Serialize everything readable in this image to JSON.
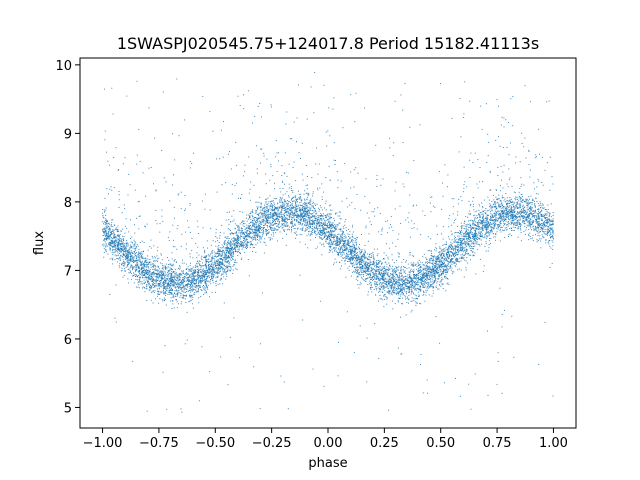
{
  "chart_data": {
    "type": "scatter",
    "title": "1SWASPJ020545.75+124017.8 Period 15182.41113s",
    "xlabel": "phase",
    "ylabel": "flux",
    "xlim": [
      -1.1,
      1.1
    ],
    "ylim": [
      4.7,
      10.1
    ],
    "x_ticks": [
      -1.0,
      -0.75,
      -0.5,
      -0.25,
      0.0,
      0.25,
      0.5,
      0.75,
      1.0
    ],
    "x_tick_labels": [
      "−1.00",
      "−0.75",
      "−0.50",
      "−0.25",
      "0.00",
      "0.25",
      "0.50",
      "0.75",
      "1.00"
    ],
    "y_ticks": [
      5,
      6,
      7,
      8,
      9,
      10
    ],
    "y_tick_labels": [
      "5",
      "6",
      "7",
      "8",
      "9",
      "10"
    ],
    "grid": false,
    "point_color": "#1f77b4",
    "series": [
      {
        "model": "sinusoid",
        "phase_range": [
          -1.0,
          1.0
        ],
        "mean_flux": 7.33,
        "amplitude": 0.52,
        "period_in_phase": 1.0,
        "peak_phase": [
          -0.17,
          0.83
        ],
        "trough_phase": [
          -0.67,
          0.33
        ],
        "scatter_std": 0.14,
        "outlier_flux_range": [
          4.9,
          9.8
        ],
        "approx_point_count": 9000
      }
    ],
    "curve_samples": {
      "phase": [
        -1.0,
        -0.75,
        -0.67,
        -0.5,
        -0.25,
        -0.17,
        0.0,
        0.25,
        0.33,
        0.5,
        0.75,
        0.83,
        1.0
      ],
      "flux": [
        7.55,
        6.95,
        6.82,
        7.0,
        7.75,
        7.85,
        7.55,
        6.95,
        6.82,
        7.0,
        7.75,
        7.85,
        7.6
      ]
    }
  }
}
